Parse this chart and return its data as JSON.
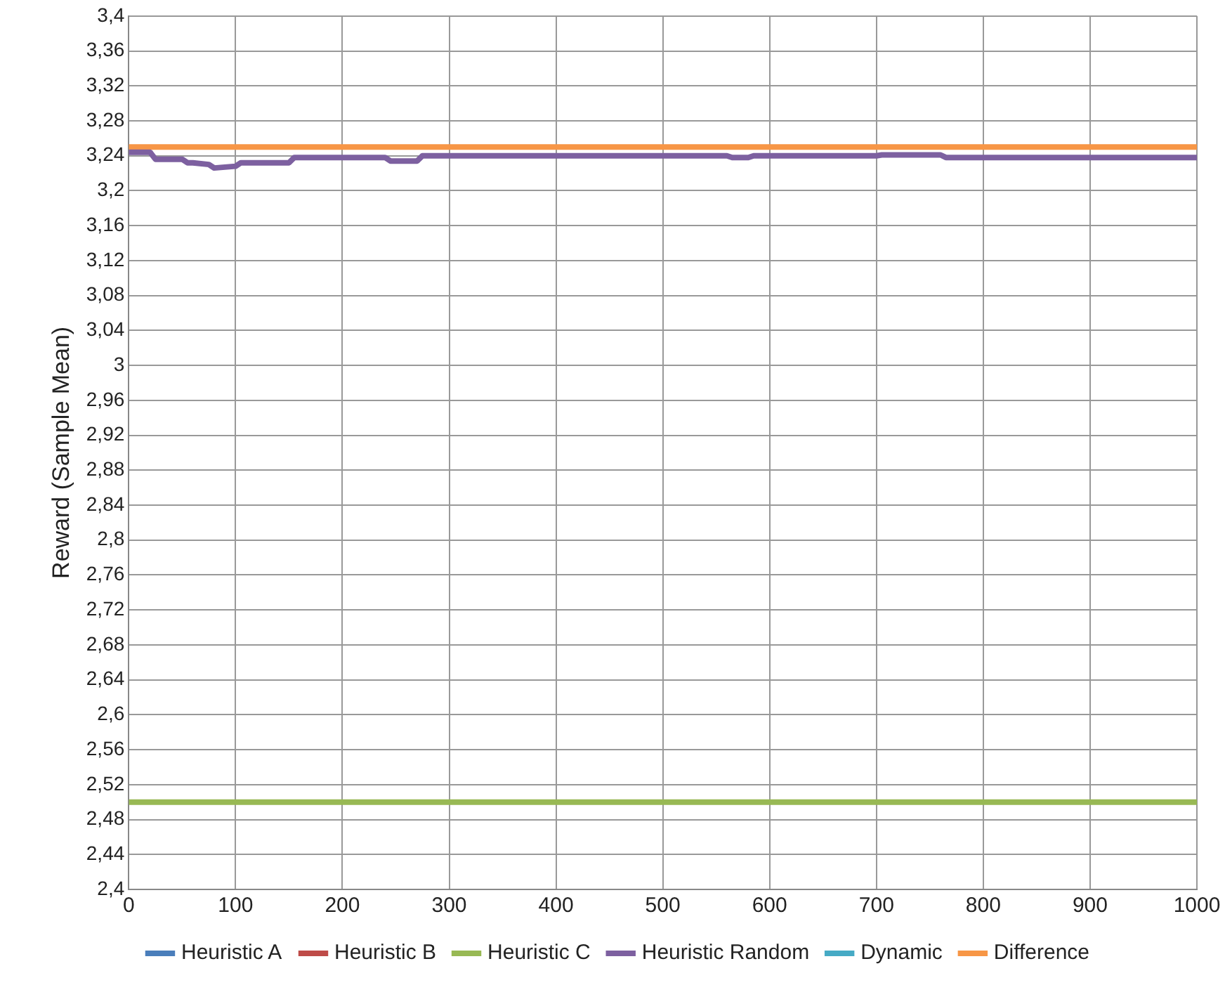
{
  "chart_data": {
    "type": "line",
    "ylabel": "Reward (Sample Mean)",
    "xlim": [
      0,
      1000
    ],
    "xticks": [
      0,
      100,
      200,
      300,
      400,
      500,
      600,
      700,
      800,
      900,
      1000
    ],
    "ylim": [
      2.4,
      3.4
    ],
    "yticks": [
      {
        "value": 2.4,
        "label": "2,4"
      },
      {
        "value": 2.44,
        "label": "2,44"
      },
      {
        "value": 2.48,
        "label": "2,48"
      },
      {
        "value": 2.52,
        "label": "2,52"
      },
      {
        "value": 2.56,
        "label": "2,56"
      },
      {
        "value": 2.6,
        "label": "2,6"
      },
      {
        "value": 2.64,
        "label": "2,64"
      },
      {
        "value": 2.68,
        "label": "2,68"
      },
      {
        "value": 2.72,
        "label": "2,72"
      },
      {
        "value": 2.76,
        "label": "2,76"
      },
      {
        "value": 2.8,
        "label": "2,8"
      },
      {
        "value": 2.84,
        "label": "2,84"
      },
      {
        "value": 2.88,
        "label": "2,88"
      },
      {
        "value": 2.92,
        "label": "2,92"
      },
      {
        "value": 2.96,
        "label": "2,96"
      },
      {
        "value": 3,
        "label": "3"
      },
      {
        "value": 3.04,
        "label": "3,04"
      },
      {
        "value": 3.08,
        "label": "3,08"
      },
      {
        "value": 3.12,
        "label": "3,12"
      },
      {
        "value": 3.16,
        "label": "3,16"
      },
      {
        "value": 3.2,
        "label": "3,2"
      },
      {
        "value": 3.24,
        "label": "3,24"
      },
      {
        "value": 3.28,
        "label": "3,28"
      },
      {
        "value": 3.32,
        "label": "3,32"
      },
      {
        "value": 3.36,
        "label": "3,36"
      },
      {
        "value": 3.4,
        "label": "3,4"
      }
    ],
    "grid": true,
    "legend": "bottom",
    "marker": "none",
    "line_style": "solid",
    "series": [
      {
        "name": "Heuristic A",
        "color": "#4a7ebb"
      },
      {
        "name": "Heuristic B",
        "color": "#be4b48"
      },
      {
        "name": "Heuristic C",
        "color": "#98b954",
        "x": [
          0,
          1000
        ],
        "values": [
          2.5,
          2.5
        ]
      },
      {
        "name": "Heuristic Random",
        "color": "#7d60a0",
        "x": [
          0,
          20,
          25,
          50,
          55,
          60,
          75,
          80,
          100,
          105,
          150,
          155,
          240,
          245,
          270,
          275,
          560,
          565,
          580,
          585,
          700,
          705,
          760,
          765,
          1000
        ],
        "values": [
          3.244,
          3.244,
          3.236,
          3.236,
          3.232,
          3.232,
          3.23,
          3.226,
          3.228,
          3.232,
          3.232,
          3.238,
          3.238,
          3.234,
          3.234,
          3.24,
          3.24,
          3.238,
          3.238,
          3.24,
          3.24,
          3.241,
          3.241,
          3.238,
          3.238
        ]
      },
      {
        "name": "Dynamic",
        "color": "#46aac5"
      },
      {
        "name": "Difference",
        "color": "#f79646",
        "x": [
          0,
          1000
        ],
        "values": [
          3.25,
          3.25
        ]
      }
    ]
  }
}
